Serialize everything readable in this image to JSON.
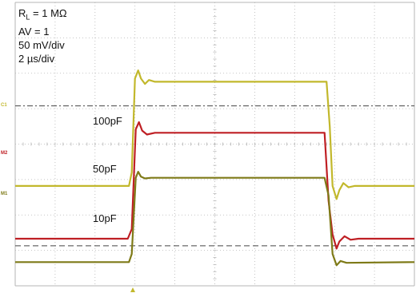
{
  "info": {
    "rl": "R",
    "rl_sub": "L",
    "rl_value": " = 1 MΩ",
    "av": "AV = 1",
    "vdiv": "50 mV/div",
    "tdiv_prefix": "2 ",
    "tdiv_unit": "µs/div"
  },
  "annotations": [
    "100pF",
    "50pF",
    "10pF"
  ],
  "markers": {
    "c1": "C1",
    "m2": "M2",
    "m1": "M1"
  },
  "colors": {
    "yellow": "#c2b82c",
    "red": "#bf1f24",
    "olive": "#7e7a17",
    "grid": "#b5b5b5",
    "ref": "#444444"
  },
  "chart_data": {
    "type": "line",
    "title": "",
    "xlabel": "",
    "ylabel": "",
    "grid": true,
    "divisions": {
      "x": 10,
      "y": 8
    },
    "x_unit_per_div": "2 µs",
    "y_unit_per_div": "50 mV",
    "xlim_div": [
      0,
      10
    ],
    "ylim_div": [
      -4,
      4
    ],
    "series": [
      {
        "color": "yellow",
        "points": [
          [
            0,
            -1.18
          ],
          [
            2.85,
            -1.18
          ],
          [
            2.92,
            -0.8
          ],
          [
            3.0,
            1.85
          ],
          [
            3.08,
            2.08
          ],
          [
            3.15,
            1.85
          ],
          [
            3.25,
            1.7
          ],
          [
            3.35,
            1.81
          ],
          [
            3.5,
            1.76
          ],
          [
            7.8,
            1.76
          ],
          [
            7.88,
            0.5
          ],
          [
            7.95,
            -1.18
          ],
          [
            8.05,
            -1.55
          ],
          [
            8.12,
            -1.3
          ],
          [
            8.22,
            -1.1
          ],
          [
            8.35,
            -1.22
          ],
          [
            8.5,
            -1.18
          ],
          [
            10,
            -1.18
          ]
        ]
      },
      {
        "color": "red",
        "points": [
          [
            0,
            -2.67
          ],
          [
            2.82,
            -2.67
          ],
          [
            2.92,
            -2.4
          ],
          [
            3.02,
            0.42
          ],
          [
            3.1,
            0.62
          ],
          [
            3.18,
            0.38
          ],
          [
            3.3,
            0.27
          ],
          [
            3.5,
            0.32
          ],
          [
            7.75,
            0.32
          ],
          [
            7.85,
            -1.6
          ],
          [
            7.95,
            -2.55
          ],
          [
            8.05,
            -2.95
          ],
          [
            8.12,
            -2.75
          ],
          [
            8.25,
            -2.6
          ],
          [
            8.4,
            -2.7
          ],
          [
            8.6,
            -2.67
          ],
          [
            10,
            -2.67
          ]
        ]
      },
      {
        "color": "olive",
        "points": [
          [
            0,
            -3.33
          ],
          [
            2.85,
            -3.33
          ],
          [
            2.92,
            -3.1
          ],
          [
            3.02,
            -0.95
          ],
          [
            3.08,
            -0.78
          ],
          [
            3.15,
            -0.92
          ],
          [
            3.25,
            -0.97
          ],
          [
            3.4,
            -0.95
          ],
          [
            7.75,
            -0.95
          ],
          [
            7.85,
            -1.45
          ],
          [
            7.95,
            -3.1
          ],
          [
            8.05,
            -3.42
          ],
          [
            8.15,
            -3.3
          ],
          [
            8.3,
            -3.35
          ],
          [
            10,
            -3.33
          ]
        ]
      }
    ],
    "references": [
      {
        "name": "C1",
        "y_div": 1.08,
        "style": "dash-dot"
      },
      {
        "name": "M2",
        "y_div": -2.87,
        "style": "dashed"
      }
    ]
  }
}
